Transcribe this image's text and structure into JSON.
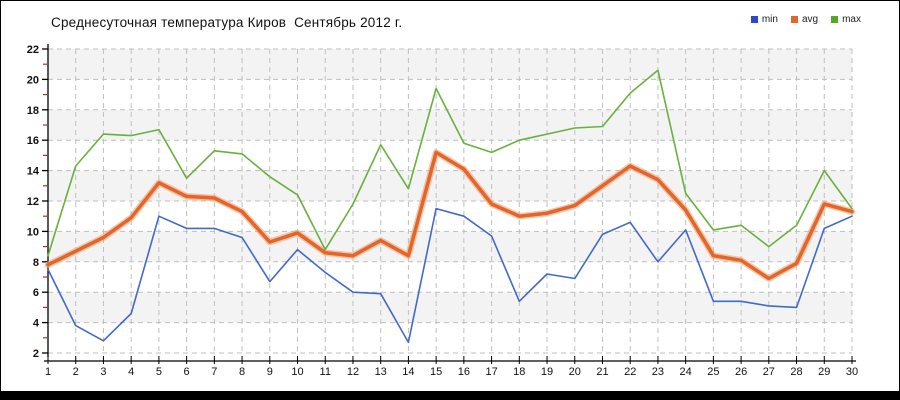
{
  "title": "Среднесуточная температура Киров  Сентябрь 2012 г.",
  "legend": [
    {
      "label": "min",
      "color": "#2a49cf"
    },
    {
      "label": "avg",
      "color": "#e2662b"
    },
    {
      "label": "max",
      "color": "#55a81f"
    }
  ],
  "colors": {
    "min_line": "#4169cc",
    "avg_line": "#e2662b",
    "avg_halo": "#f2a678",
    "max_line": "#67b13c",
    "band_fill": "#f3f3f3",
    "grid": "#bfbfbf",
    "axis": "#000000",
    "minor_tick": "#cc2222",
    "bottom_bar": "#000000"
  },
  "chart_data": {
    "type": "line",
    "title": "Среднесуточная температура Киров  Сентябрь 2012 г.",
    "xlabel": "",
    "ylabel": "",
    "x": [
      1,
      2,
      3,
      4,
      5,
      6,
      7,
      8,
      9,
      10,
      11,
      12,
      13,
      14,
      15,
      16,
      17,
      18,
      19,
      20,
      21,
      22,
      23,
      24,
      25,
      26,
      27,
      28,
      29,
      30
    ],
    "series": [
      {
        "name": "min",
        "color": "#4169cc",
        "width": 1.6,
        "values": [
          7.5,
          3.8,
          2.8,
          4.6,
          11.0,
          10.2,
          10.2,
          9.6,
          6.7,
          8.8,
          7.3,
          6.0,
          5.9,
          2.7,
          11.5,
          11.0,
          9.7,
          5.4,
          7.2,
          6.9,
          9.8,
          10.6,
          8.0,
          10.1,
          5.4,
          5.4,
          5.1,
          5.0,
          10.2,
          11.0
        ]
      },
      {
        "name": "avg",
        "color": "#e2662b",
        "width": 3.5,
        "values": [
          7.8,
          8.7,
          9.6,
          10.9,
          13.2,
          12.3,
          12.2,
          11.3,
          9.3,
          9.9,
          8.6,
          8.4,
          9.4,
          8.4,
          15.2,
          14.1,
          11.8,
          11.0,
          11.2,
          11.7,
          13.0,
          14.3,
          13.4,
          11.4,
          8.4,
          8.1,
          6.9,
          7.9,
          11.8,
          11.3
        ]
      },
      {
        "name": "max",
        "color": "#67b13c",
        "width": 1.6,
        "values": [
          8.4,
          14.3,
          16.4,
          16.3,
          16.7,
          13.5,
          15.3,
          15.1,
          13.6,
          12.4,
          8.8,
          11.8,
          15.7,
          12.8,
          19.4,
          15.8,
          15.2,
          16.0,
          16.4,
          16.8,
          16.9,
          19.1,
          20.6,
          12.5,
          10.1,
          10.4,
          9.0,
          10.4,
          14.0,
          11.5
        ]
      }
    ],
    "ylim": [
      2,
      22
    ],
    "y_ticks": [
      2,
      4,
      6,
      8,
      10,
      12,
      14,
      16,
      18,
      20,
      22
    ],
    "y_minor_ticks": [
      3,
      5,
      7,
      9,
      11,
      13,
      15,
      17,
      19,
      21
    ],
    "grid": true,
    "banded_background": true,
    "legend_position": "top-right"
  }
}
